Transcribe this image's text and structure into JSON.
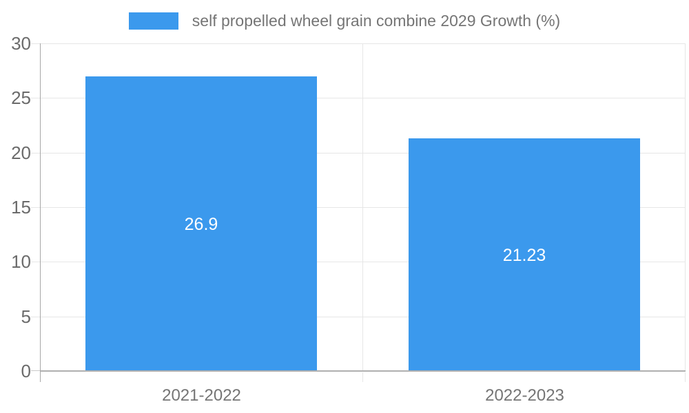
{
  "chart_data": {
    "type": "bar",
    "title": "self propelled wheel grain combine 2029 Growth (%)",
    "categories": [
      "2021-2022",
      "2022-2023"
    ],
    "values": [
      26.9,
      21.23
    ],
    "value_labels": [
      "26.9",
      "21.23"
    ],
    "xlabel": "",
    "ylabel": "",
    "ylim": [
      0,
      30
    ],
    "yticks": [
      0,
      5,
      10,
      15,
      20,
      25,
      30
    ],
    "grid": true,
    "legend_position": "top",
    "legend": {
      "label": "self propelled wheel grain combine 2029 Growth (%)"
    }
  },
  "colors": {
    "bar": "#3b99ed",
    "value_label": "#ffffff",
    "grid_line": "#e6e6e6",
    "axis_line": "#a6a6a6",
    "baseline": "#b0b0b0",
    "y_tick_label": "#6b6b6b",
    "x_tick_label": "#757575",
    "legend_text": "#757575",
    "background": "#ffffff"
  }
}
